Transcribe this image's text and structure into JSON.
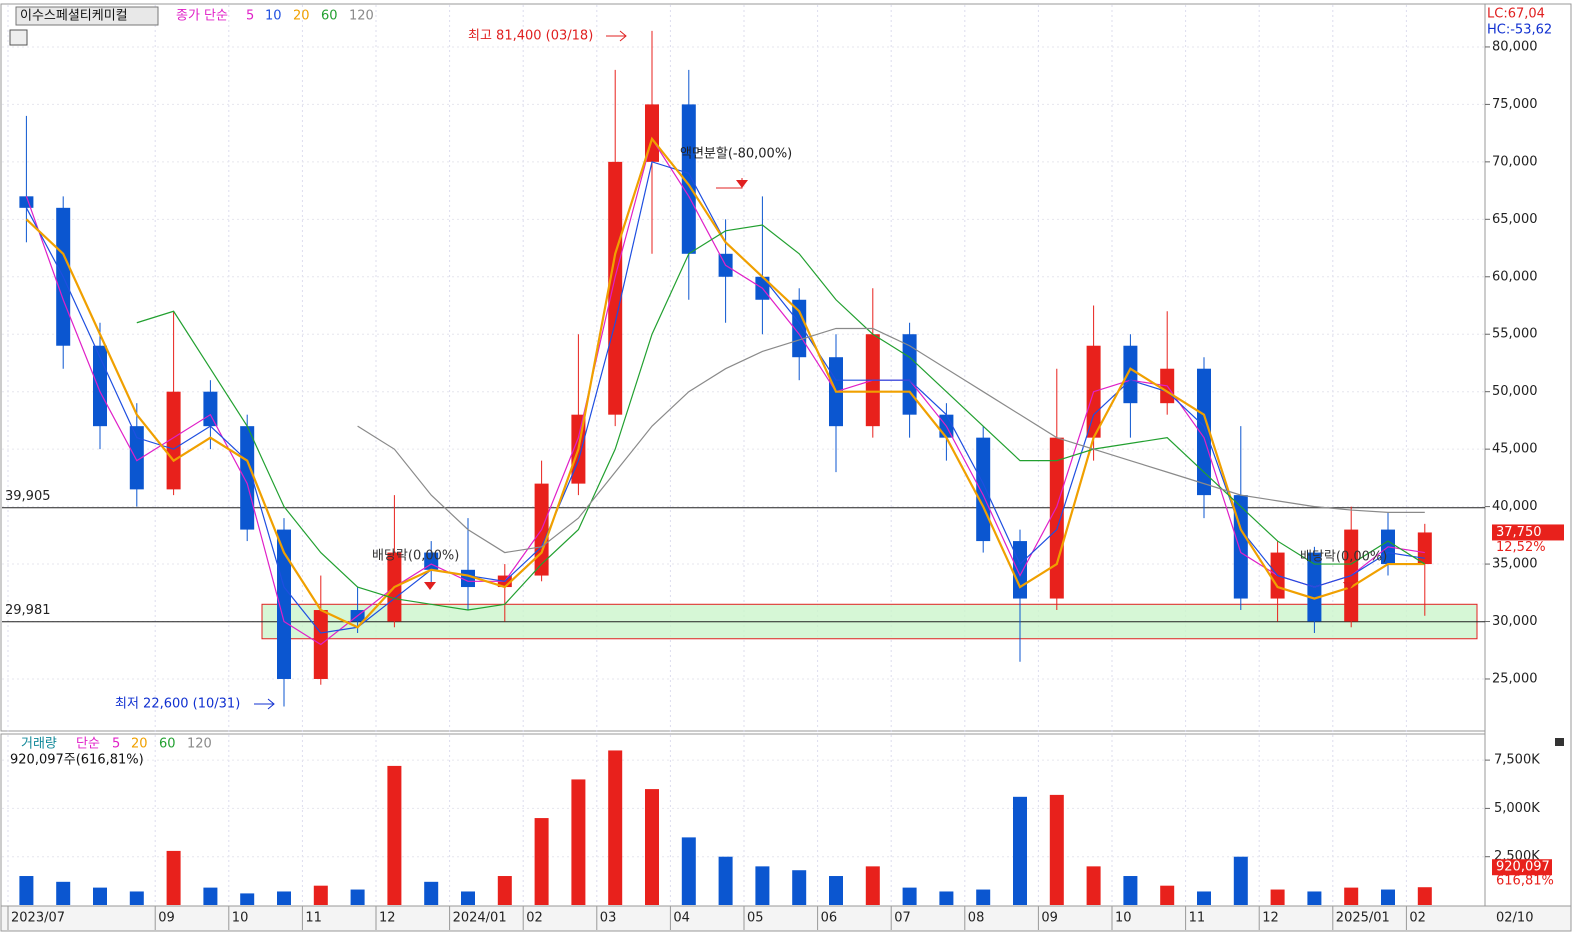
{
  "chart_data": [
    {
      "type": "candlestick",
      "title": "이수스페셜티케미컬",
      "legend_prefix": "종가 단순",
      "up_color": "#e8211c",
      "down_color": "#0b56d0",
      "open": [
        67000,
        66000,
        54000,
        47000,
        41500,
        50000,
        47000,
        38000,
        25000,
        31000,
        30000,
        36000,
        34500,
        33000,
        34000,
        42000,
        48000,
        70000,
        75000,
        62000,
        60000,
        58000,
        53000,
        47000,
        55000,
        48000,
        46000,
        37000,
        32000,
        46000,
        54000,
        49000,
        52000,
        41000,
        32000,
        36000,
        30000,
        38000,
        35000
      ],
      "high": [
        74000,
        67000,
        56000,
        49000,
        57000,
        51000,
        48000,
        39000,
        34000,
        33000,
        41000,
        37000,
        39000,
        35000,
        44000,
        55000,
        78000,
        81400,
        78000,
        65000,
        67000,
        59000,
        55000,
        59000,
        56000,
        49000,
        47000,
        38000,
        52000,
        57500,
        55000,
        57000,
        53000,
        47000,
        37000,
        36500,
        40000,
        39500,
        38500
      ],
      "low": [
        63000,
        52000,
        45000,
        40000,
        41000,
        45000,
        37000,
        22600,
        24500,
        29000,
        29500,
        33000,
        31000,
        30000,
        33500,
        41000,
        47000,
        62000,
        58000,
        56000,
        55000,
        51000,
        43000,
        46000,
        46000,
        44000,
        36000,
        26500,
        31000,
        44000,
        46000,
        48000,
        39000,
        31000,
        30000,
        29000,
        29500,
        34000,
        30500
      ],
      "close": [
        66000,
        54000,
        47000,
        41500,
        50000,
        47000,
        38000,
        25000,
        31000,
        30000,
        36000,
        34500,
        33000,
        34000,
        42000,
        48000,
        70000,
        75000,
        62000,
        60000,
        58000,
        53000,
        47000,
        55000,
        48000,
        46000,
        37000,
        32000,
        46000,
        54000,
        49000,
        52000,
        41000,
        32000,
        36000,
        30000,
        38000,
        35000,
        37750
      ],
      "series": [
        {
          "name": "5",
          "color": "#e020c8",
          "values": [
            67000,
            58000,
            50000,
            44000,
            46000,
            48000,
            42000,
            30000,
            28000,
            30500,
            33000,
            35000,
            33500,
            33500,
            38000,
            46000,
            60000,
            72000,
            67000,
            61000,
            59000,
            55000,
            50000,
            51000,
            51000,
            47000,
            41000,
            34000,
            40000,
            50000,
            51000,
            50500,
            46000,
            36000,
            34000,
            33000,
            34000,
            36500,
            36000
          ]
        },
        {
          "name": "10",
          "color": "#1f4fe0",
          "values": [
            66000,
            60000,
            53000,
            46000,
            45000,
            47000,
            44000,
            33000,
            29000,
            29500,
            32000,
            34500,
            34000,
            33500,
            36500,
            44000,
            56000,
            70000,
            69000,
            63000,
            60000,
            56000,
            51000,
            51000,
            51000,
            48000,
            42000,
            35000,
            38000,
            48000,
            51000,
            50000,
            47000,
            38000,
            34000,
            33000,
            34000,
            36000,
            35500
          ]
        },
        {
          "name": "20",
          "color": "#f0a000",
          "values": [
            65000,
            62000,
            55000,
            48000,
            44000,
            46000,
            44000,
            36000,
            31000,
            29500,
            33000,
            34500,
            34000,
            33000,
            36000,
            45000,
            62000,
            72000,
            68000,
            63000,
            60000,
            57000,
            50000,
            50000,
            50000,
            46000,
            40000,
            33000,
            35000,
            46000,
            52000,
            50000,
            48000,
            38000,
            33000,
            32000,
            33000,
            35000,
            35000
          ]
        },
        {
          "name": "60",
          "color": "#22a030",
          "values": [
            null,
            null,
            null,
            56000,
            57000,
            52000,
            47000,
            40000,
            36000,
            33000,
            32000,
            31500,
            31000,
            31500,
            35000,
            38000,
            45000,
            55000,
            62000,
            64000,
            64500,
            62000,
            58000,
            55000,
            53000,
            50000,
            47000,
            44000,
            44000,
            45000,
            45500,
            46000,
            43000,
            40000,
            37000,
            35000,
            35000,
            37000,
            35000
          ]
        },
        {
          "name": "120",
          "color": "#8a8a8a",
          "values": [
            null,
            null,
            null,
            null,
            null,
            null,
            null,
            null,
            null,
            47000,
            45000,
            41000,
            38000,
            36000,
            36500,
            39000,
            43000,
            47000,
            50000,
            52000,
            53500,
            54500,
            55500,
            55500,
            54000,
            52000,
            50000,
            48000,
            46000,
            45000,
            44000,
            43000,
            42000,
            41000,
            40500,
            40000,
            39700,
            39500,
            39500
          ]
        }
      ],
      "ylim": [
        20560,
        83650
      ],
      "yticks": [
        {
          "value": 25000,
          "label": "25,000"
        },
        {
          "value": 30000,
          "label": "30,000"
        },
        {
          "value": 35000,
          "label": "35,000"
        },
        {
          "value": 40000,
          "label": "40,000"
        },
        {
          "value": 45000,
          "label": "45,000"
        },
        {
          "value": 50000,
          "label": "50,000"
        },
        {
          "value": 55000,
          "label": "55,000"
        },
        {
          "value": 60000,
          "label": "60,000"
        },
        {
          "value": 65000,
          "label": "65,000"
        },
        {
          "value": 70000,
          "label": "70,000"
        },
        {
          "value": 75000,
          "label": "75,000"
        },
        {
          "value": 80000,
          "label": "80,000"
        }
      ],
      "hlines": [
        {
          "value": 39905,
          "label": "39,905"
        },
        {
          "value": 29981,
          "label": "29,981"
        }
      ],
      "zone": [
        28500,
        31500
      ],
      "last_price": {
        "value": 37750,
        "label": "37,750"
      },
      "change_label": "12,52%",
      "corner_labels": [
        "LC:67,04",
        "HC:-53,62"
      ],
      "annotations": [
        "최고 81,400 (03/18)",
        "최저 22,600 (10/31)",
        "액면분할(-80,00%)",
        "배당락(0,00%)",
        "배당락(0,00%)"
      ]
    },
    {
      "type": "bar",
      "title": "거래량",
      "legend_prefix": "단순",
      "legend": [
        {
          "name": "5",
          "color": "#e020c8"
        },
        {
          "name": "20",
          "color": "#f0a000"
        },
        {
          "name": "60",
          "color": "#22a030"
        },
        {
          "name": "120",
          "color": "#8a8a8a"
        }
      ],
      "info": "920,097주(616,81%)",
      "categories": [
        "2023/07",
        null,
        null,
        null,
        "09",
        null,
        "10",
        null,
        "11",
        null,
        "12",
        null,
        "2024/01",
        null,
        "02",
        null,
        "03",
        null,
        "04",
        null,
        "05",
        null,
        "06",
        null,
        "07",
        null,
        "08",
        null,
        "09",
        null,
        "10",
        null,
        "11",
        null,
        "12",
        null,
        "2025/01",
        null,
        "02"
      ],
      "end_label": "02/10",
      "values": [
        1500,
        1200,
        900,
        700,
        2800,
        900,
        600,
        700,
        1000,
        800,
        7200,
        1200,
        700,
        1500,
        4500,
        6500,
        8000,
        6000,
        3500,
        2500,
        2000,
        1800,
        1500,
        2000,
        900,
        700,
        800,
        5600,
        5700,
        2000,
        1500,
        1000,
        700,
        2500,
        800,
        700,
        900,
        800,
        920.097
      ],
      "last_label": "920,097",
      "ratio_label": "616,81%",
      "ylim": [
        0,
        8800
      ],
      "yticks": [
        {
          "value": 2500,
          "label": "2,500K"
        },
        {
          "value": 5000,
          "label": "5,000K"
        },
        {
          "value": 7500,
          "label": "7,500K"
        }
      ]
    }
  ]
}
